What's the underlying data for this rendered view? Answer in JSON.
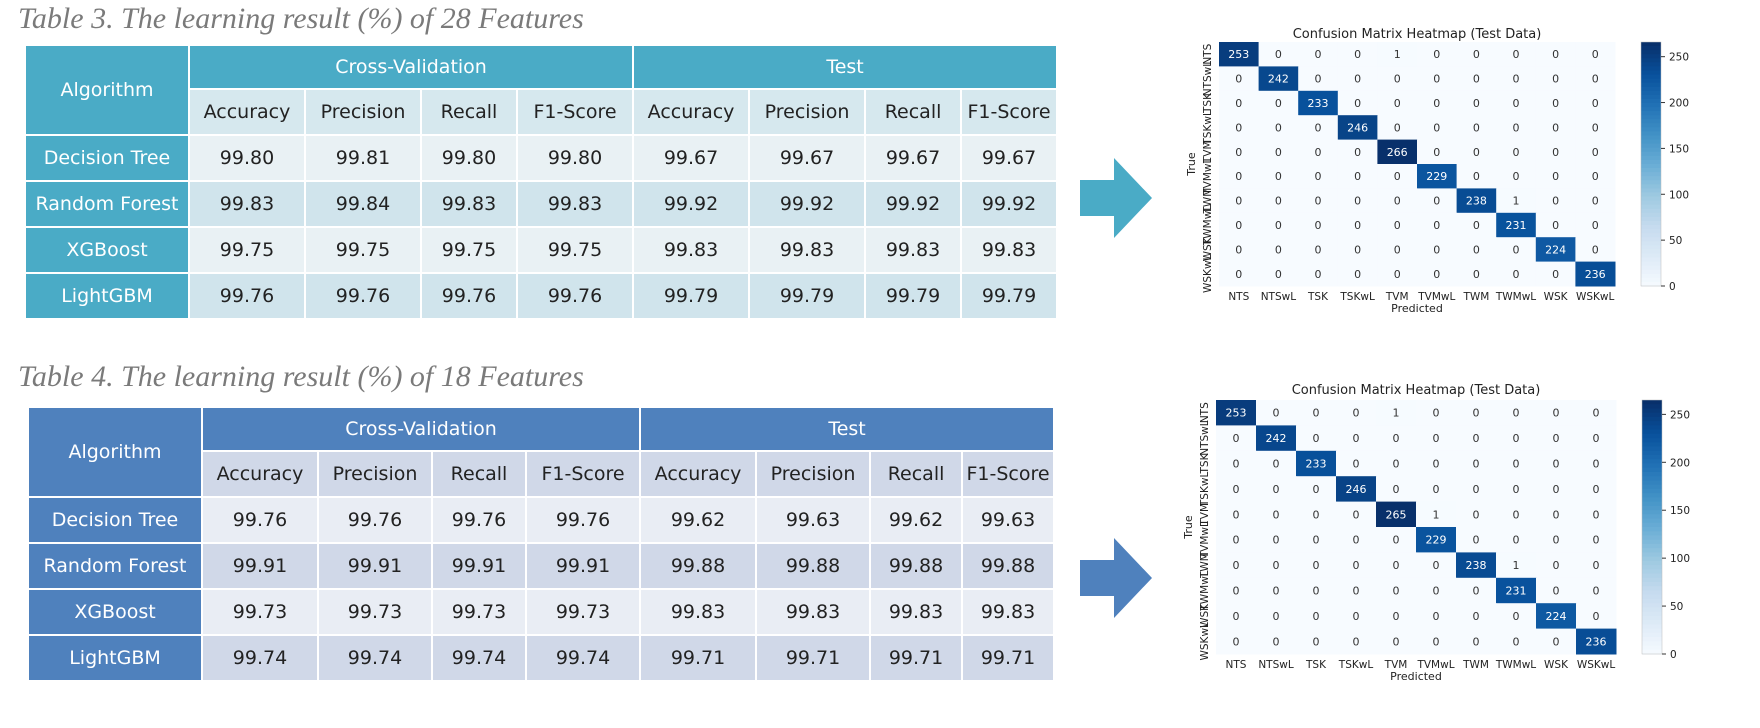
{
  "table3": {
    "caption": "Table 3. The learning result (%) of 28 Features",
    "algorithm_label": "Algorithm",
    "group_headers": [
      "Cross-Validation",
      "Test"
    ],
    "sub_headers": [
      "Accuracy",
      "Precision",
      "Recall",
      "F1-Score",
      "Accuracy",
      "Precision",
      "Recall",
      "F1-Score"
    ],
    "rows": [
      {
        "name": "Decision Tree",
        "values": [
          "99.80",
          "99.81",
          "99.80",
          "99.80",
          "99.67",
          "99.67",
          "99.67",
          "99.67"
        ]
      },
      {
        "name": "Random Forest",
        "values": [
          "99.83",
          "99.84",
          "99.83",
          "99.83",
          "99.92",
          "99.92",
          "99.92",
          "99.92"
        ]
      },
      {
        "name": "XGBoost",
        "values": [
          "99.75",
          "99.75",
          "99.75",
          "99.75",
          "99.83",
          "99.83",
          "99.83",
          "99.83"
        ]
      },
      {
        "name": "LightGBM",
        "values": [
          "99.76",
          "99.76",
          "99.76",
          "99.76",
          "99.79",
          "99.79",
          "99.79",
          "99.79"
        ]
      }
    ],
    "arrow_color": "#4aabc6"
  },
  "table4": {
    "caption": "Table 4. The learning result (%) of 18 Features",
    "algorithm_label": "Algorithm",
    "group_headers": [
      "Cross-Validation",
      "Test"
    ],
    "sub_headers": [
      "Accuracy",
      "Precision",
      "Recall",
      "F1-Score",
      "Accuracy",
      "Precision",
      "Recall",
      "F1-Score"
    ],
    "rows": [
      {
        "name": "Decision Tree",
        "values": [
          "99.76",
          "99.76",
          "99.76",
          "99.76",
          "99.62",
          "99.63",
          "99.62",
          "99.63"
        ]
      },
      {
        "name": "Random Forest",
        "values": [
          "99.91",
          "99.91",
          "99.91",
          "99.91",
          "99.88",
          "99.88",
          "99.88",
          "99.88"
        ]
      },
      {
        "name": "XGBoost",
        "values": [
          "99.73",
          "99.73",
          "99.73",
          "99.73",
          "99.83",
          "99.83",
          "99.83",
          "99.83"
        ]
      },
      {
        "name": "LightGBM",
        "values": [
          "99.74",
          "99.74",
          "99.74",
          "99.74",
          "99.71",
          "99.71",
          "99.71",
          "99.71"
        ]
      }
    ],
    "arrow_color": "#4f81bd"
  },
  "chart_data": [
    {
      "type": "heatmap",
      "title": "Confusion Matrix Heatmap (Test Data)",
      "xlabel": "Predicted",
      "ylabel": "True",
      "x_categories": [
        "NTS",
        "NTSwL",
        "TSK",
        "TSKwL",
        "TVM",
        "TVMwL",
        "TWM",
        "TWMwL",
        "WSK",
        "WSKwL"
      ],
      "y_categories": [
        "NTS",
        "NTSwL",
        "TSK",
        "TSKwL",
        "TVM",
        "TVMwL",
        "TWM",
        "TWMwL",
        "WSK",
        "WSKwL"
      ],
      "matrix": [
        [
          253,
          0,
          0,
          0,
          1,
          0,
          0,
          0,
          0,
          0
        ],
        [
          0,
          242,
          0,
          0,
          0,
          0,
          0,
          0,
          0,
          0
        ],
        [
          0,
          0,
          233,
          0,
          0,
          0,
          0,
          0,
          0,
          0
        ],
        [
          0,
          0,
          0,
          246,
          0,
          0,
          0,
          0,
          0,
          0
        ],
        [
          0,
          0,
          0,
          0,
          266,
          0,
          0,
          0,
          0,
          0
        ],
        [
          0,
          0,
          0,
          0,
          0,
          229,
          0,
          0,
          0,
          0
        ],
        [
          0,
          0,
          0,
          0,
          0,
          0,
          238,
          1,
          0,
          0
        ],
        [
          0,
          0,
          0,
          0,
          0,
          0,
          0,
          231,
          0,
          0
        ],
        [
          0,
          0,
          0,
          0,
          0,
          0,
          0,
          0,
          224,
          0
        ],
        [
          0,
          0,
          0,
          0,
          0,
          0,
          0,
          0,
          0,
          236
        ]
      ],
      "colorbar_ticks": [
        0,
        50,
        100,
        150,
        200,
        250
      ],
      "color_range": [
        0,
        266
      ],
      "colormap": "Blues"
    },
    {
      "type": "heatmap",
      "title": "Confusion Matrix Heatmap (Test Data)",
      "xlabel": "Predicted",
      "ylabel": "True",
      "x_categories": [
        "NTS",
        "NTSwL",
        "TSK",
        "TSKwL",
        "TVM",
        "TVMwL",
        "TWM",
        "TWMwL",
        "WSK",
        "WSKwL"
      ],
      "y_categories": [
        "NTS",
        "NTSwL",
        "TSK",
        "TSKwL",
        "TVM",
        "TVMwL",
        "TWM",
        "TWMwL",
        "WSK",
        "WSKwL"
      ],
      "matrix": [
        [
          253,
          0,
          0,
          0,
          1,
          0,
          0,
          0,
          0,
          0
        ],
        [
          0,
          242,
          0,
          0,
          0,
          0,
          0,
          0,
          0,
          0
        ],
        [
          0,
          0,
          233,
          0,
          0,
          0,
          0,
          0,
          0,
          0
        ],
        [
          0,
          0,
          0,
          246,
          0,
          0,
          0,
          0,
          0,
          0
        ],
        [
          0,
          0,
          0,
          0,
          265,
          1,
          0,
          0,
          0,
          0
        ],
        [
          0,
          0,
          0,
          0,
          0,
          229,
          0,
          0,
          0,
          0
        ],
        [
          0,
          0,
          0,
          0,
          0,
          0,
          238,
          1,
          0,
          0
        ],
        [
          0,
          0,
          0,
          0,
          0,
          0,
          0,
          231,
          0,
          0
        ],
        [
          0,
          0,
          0,
          0,
          0,
          0,
          0,
          0,
          224,
          0
        ],
        [
          0,
          0,
          0,
          0,
          0,
          0,
          0,
          0,
          0,
          236
        ]
      ],
      "colorbar_ticks": [
        0,
        50,
        100,
        150,
        200,
        250
      ],
      "color_range": [
        0,
        265
      ],
      "colormap": "Blues"
    }
  ]
}
